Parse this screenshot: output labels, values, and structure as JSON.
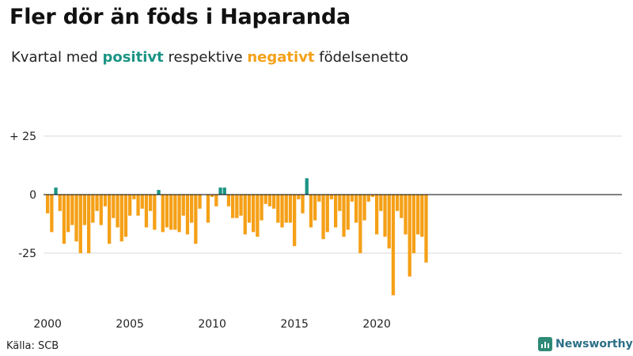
{
  "header": {
    "title": "Fler dör än föds i Haparanda",
    "subtitle_pre": "Kvartal med",
    "subtitle_positive": "positivt",
    "subtitle_mid": "respektive",
    "subtitle_negative": "negativt",
    "subtitle_post": "födelsenetto"
  },
  "footer": {
    "source": "Källa: SCB",
    "brand": "Newsworthy"
  },
  "colors": {
    "positive": "#1b9484",
    "negative": "#f5a017",
    "grid": "#d9d9d9",
    "baseline": "#000000"
  },
  "chart_data": {
    "type": "bar",
    "xlabel": "",
    "ylabel": "",
    "x_start_year": 2000,
    "x_tick_labels": [
      "2000",
      "2005",
      "2010",
      "2015",
      "2020"
    ],
    "y_ticks": [
      25,
      0,
      -25
    ],
    "y_tick_labels": [
      "+ 25",
      "0",
      "-25"
    ],
    "ylim": [
      -45,
      25
    ],
    "grid": true,
    "values": [
      -8,
      -16,
      3,
      -7,
      -21,
      -16,
      -13,
      -20,
      -25,
      -13,
      -25,
      -12,
      -7,
      -13,
      -5,
      -21,
      -10,
      -14,
      -20,
      -18,
      -9,
      -2,
      -9,
      -6,
      -14,
      -7,
      -15,
      2,
      -16,
      -14,
      -15,
      -15,
      -16,
      -9,
      -17,
      -12,
      -21,
      -6,
      0,
      -12,
      -1,
      -5,
      3,
      3,
      -5,
      -10,
      -10,
      -9,
      -17,
      -12,
      -16,
      -18,
      -11,
      -4,
      -5,
      -6,
      -12,
      -14,
      -12,
      -12,
      -22,
      -2,
      -8,
      7,
      -14,
      -11,
      -3,
      -19,
      -16,
      -2,
      -14,
      -7,
      -18,
      -15,
      -3,
      -12,
      -25,
      -11,
      -3,
      -1,
      -17,
      -7,
      -18,
      -23,
      -43,
      -7,
      -10,
      -17,
      -35,
      -25,
      -17,
      -18,
      -29
    ]
  }
}
